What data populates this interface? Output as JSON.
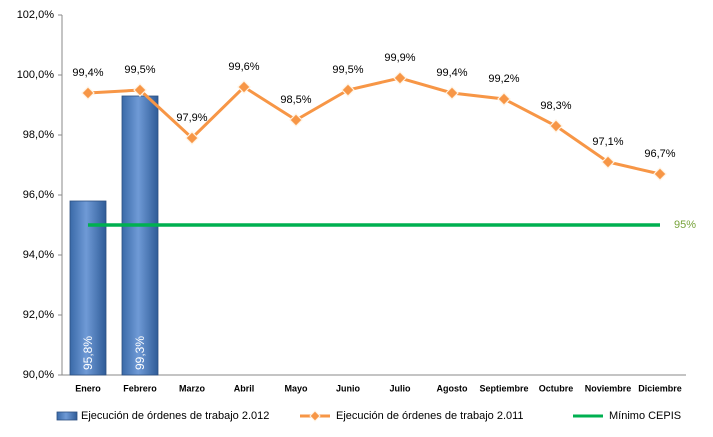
{
  "chart_data": {
    "type": "combo",
    "categories": [
      "Enero",
      "Febrero",
      "Marzo",
      "Abril",
      "Mayo",
      "Junio",
      "Julio",
      "Agosto",
      "Septiembre",
      "Octubre",
      "Noviembre",
      "Diciembre"
    ],
    "ylim": [
      90,
      102
    ],
    "yticks": [
      {
        "value": 90,
        "label": "90,0%"
      },
      {
        "value": 92,
        "label": "92,0%"
      },
      {
        "value": 94,
        "label": "94,0%"
      },
      {
        "value": 96,
        "label": "96,0%"
      },
      {
        "value": 98,
        "label": "98,0%"
      },
      {
        "value": 100,
        "label": "100,0%"
      },
      {
        "value": 102,
        "label": "102,0%"
      }
    ],
    "grid": false,
    "legend": "bottom",
    "series": [
      {
        "name": "Ejecución de órdenes de trabajo 2.012",
        "type": "bar",
        "color": "#4f81bd",
        "values": [
          95.8,
          99.3,
          null,
          null,
          null,
          null,
          null,
          null,
          null,
          null,
          null,
          null
        ],
        "value_labels": [
          "95,8%",
          "99,3%",
          null,
          null,
          null,
          null,
          null,
          null,
          null,
          null,
          null,
          null
        ]
      },
      {
        "name": "Ejecución de órdenes de trabajo 2.011",
        "type": "line",
        "color": "#f79646",
        "values": [
          99.4,
          99.5,
          97.9,
          99.6,
          98.5,
          99.5,
          99.9,
          99.4,
          99.2,
          98.3,
          97.1,
          96.7
        ],
        "value_labels": [
          "99,4%",
          "99,5%",
          "97,9%",
          "99,6%",
          "98,5%",
          "99,5%",
          "99,9%",
          "99,4%",
          "99,2%",
          "98,3%",
          "97,1%",
          "96,7%"
        ]
      },
      {
        "name": "Mínimo CEPIS",
        "type": "line",
        "color": "#00b050",
        "values": [
          95,
          95,
          95,
          95,
          95,
          95,
          95,
          95,
          95,
          95,
          95,
          95
        ],
        "value_labels": [
          null,
          null,
          null,
          null,
          null,
          null,
          null,
          null,
          null,
          null,
          null,
          "95%"
        ]
      }
    ]
  }
}
